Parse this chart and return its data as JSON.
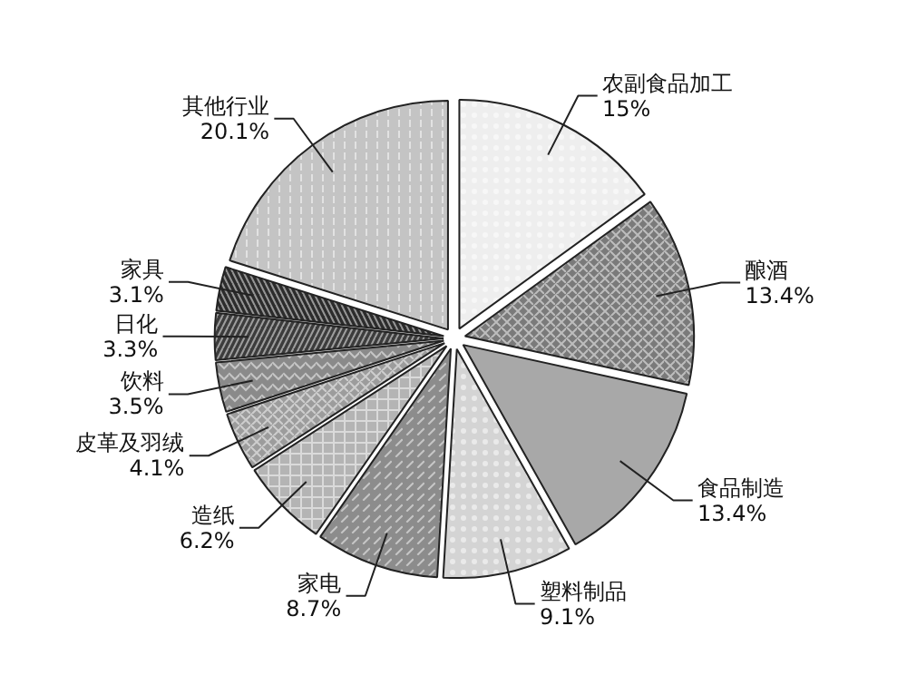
{
  "chart_data": {
    "type": "pie",
    "categories": [
      "农副食品加工",
      "酿酒",
      "食品制造",
      "塑料制品",
      "家电",
      "造纸",
      "皮革及羽绒",
      "饮料",
      "日化",
      "家具",
      "其他行业"
    ],
    "values": [
      15,
      13.4,
      13.4,
      9.1,
      8.7,
      6.2,
      4.1,
      3.5,
      3.3,
      3.1,
      20.1
    ],
    "value_labels": [
      "15%",
      "13.4%",
      "13.4%",
      "9.1%",
      "8.7%",
      "6.2%",
      "4.1%",
      "3.5%",
      "3.3%",
      "3.1%",
      "20.1%"
    ],
    "colors": [
      "#eeeeee",
      "#7a7a7a",
      "#a8a8a8",
      "#d4d4d4",
      "#8c8c8c",
      "#b4b4b4",
      "#9c9c9c",
      "#8a8a8a",
      "#3c3c3c",
      "#2c2c2c",
      "#c4c4c4"
    ]
  }
}
